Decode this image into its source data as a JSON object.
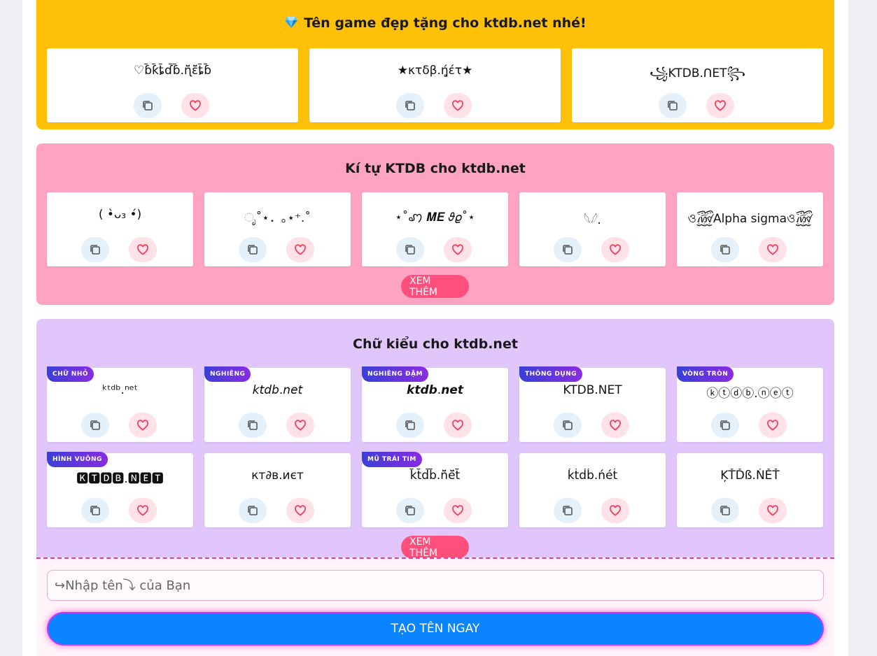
{
  "sections": {
    "game_names": {
      "title": "Tên game đẹp tặng cho ktdb.net nhé!",
      "items": [
        "♡ɓ̆̈ƙ̆̈ȶ̆̈ɗ̆̈ɓ̆̈.ɳ̆̈ɛ̆̈ȶ̆̈ɓ̆̈",
        "★κτδβ.ή̥έτ★",
        "꧁KTDB.ᑎET꧂"
      ]
    },
    "ki_tu": {
      "title": "Kí tự KTDB cho ktdb.net",
      "items": [
        "( •̀ᴗ₃ •́)",
        "ೃ˚⋆．｡⋆⁺.˚",
        "⋆˚ꩇ 𝑴𝑬 𝜗𝜚˚⋆",
        "𓆩𓆪.",
        "ও꫞Alpha sigmaও꫞"
      ],
      "more_label": "XEM THÊM"
    },
    "chu_kieu": {
      "title": "Chữ kiểu cho ktdb.net",
      "items": [
        {
          "badge": "CHỮ NHỎ",
          "text": "ᵏᵗᵈᵇ.ⁿᵉᵗ"
        },
        {
          "badge": "NGHIÊNG",
          "text": "𝘬𝘵𝘥𝘣.𝘯𝘦𝘵"
        },
        {
          "badge": "NGHIÊNG ĐẬM",
          "text": "𝙠𝙩𝙙𝙗.𝙣𝙚𝙩"
        },
        {
          "badge": "THÔNG DỤNG",
          "text": "KTDB.NET"
        },
        {
          "badge": "VÒNG TRÒN",
          "text": "ⓚⓣⓓⓑ.ⓝⓔⓣ"
        },
        {
          "badge": "HÌNH VUÔNG",
          "text": "🅺🆃🅳🅱.🅽🅴🆃"
        },
        {
          "badge": "",
          "text": "кт∂в.иєт"
        },
        {
          "badge": "MŨ TRÁI TIM",
          "text": "k̆̈t̆̈d̆̈b̆̈.n̆̈ĕ̈t̆̈"
        },
        {
          "badge": "",
          "text": "ḱt́d́b́.ńét́"
        },
        {
          "badge": "",
          "text": "ĶŤĎß.ŃĚŤ"
        }
      ],
      "more_label": "XEM THÊM"
    }
  },
  "form": {
    "placeholder": "↪Nhập tên⤵ của Bạn",
    "submit_label": "TẠO TÊN NGAY"
  },
  "icons": {
    "copy": "copy-icon",
    "like": "heart-icon",
    "gem": "gem-icon"
  },
  "colors": {
    "yellow": "#ffc107",
    "pink": "#ffa3c2",
    "purple": "#e0c6fb",
    "accent": "#ff4f7b",
    "primary": "#0a84ff"
  }
}
